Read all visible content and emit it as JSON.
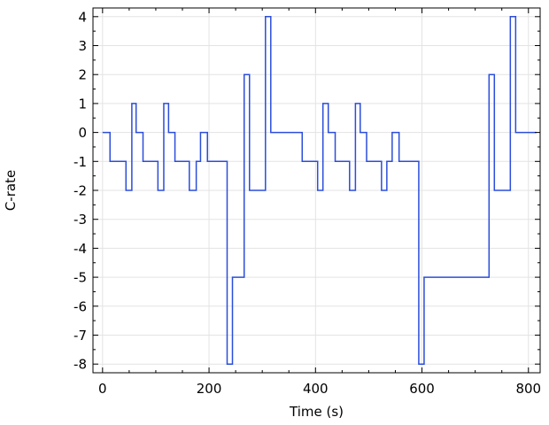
{
  "chart_data": {
    "type": "line",
    "title": "",
    "xlabel": "Time (s)",
    "ylabel": "C-rate",
    "xlim": [
      -18,
      822
    ],
    "ylim": [
      -8.3,
      4.3
    ],
    "x_ticks": [
      0,
      200,
      400,
      600,
      800
    ],
    "x_tick_labels": [
      "0",
      "200",
      "400",
      "600",
      "800"
    ],
    "y_ticks": [
      4,
      3,
      2,
      1,
      0,
      -1,
      -2,
      -3,
      -4,
      -5,
      -6,
      -7,
      -8
    ],
    "y_tick_labels": [
      "4",
      "3",
      "2",
      "1",
      "0",
      "-1",
      "-2",
      "-3",
      "-4",
      "-5",
      "-6",
      "-7",
      "-8"
    ],
    "grid": true,
    "colors": {
      "series": "#2b4ddb",
      "grid": "#e3e3e3",
      "axis": "#000000"
    },
    "series": [
      {
        "name": "",
        "x": [
          0,
          14,
          14,
          44,
          44,
          55,
          55,
          63,
          63,
          76,
          76,
          104,
          104,
          115,
          115,
          124,
          124,
          136,
          136,
          163,
          163,
          176,
          176,
          184,
          184,
          197,
          197,
          234,
          234,
          244,
          244,
          266,
          266,
          276,
          276,
          306,
          306,
          316,
          316,
          375,
          375,
          404,
          404,
          414,
          414,
          424,
          424,
          437,
          437,
          464,
          464,
          475,
          475,
          484,
          484,
          496,
          496,
          524,
          524,
          534,
          534,
          544,
          544,
          557,
          557,
          594,
          594,
          604,
          604,
          726,
          726,
          736,
          736,
          766,
          766,
          776,
          776,
          815
        ],
        "y": [
          0,
          0,
          -1,
          -1,
          -2,
          -2,
          1,
          1,
          0,
          0,
          -1,
          -1,
          -2,
          -2,
          1,
          1,
          0,
          0,
          -1,
          -1,
          -2,
          -2,
          -1,
          -1,
          0,
          0,
          -1,
          -1,
          -8,
          -8,
          -5,
          -5,
          2,
          2,
          -2,
          -2,
          4,
          4,
          0,
          0,
          -1,
          -1,
          -2,
          -2,
          1,
          1,
          0,
          0,
          -1,
          -1,
          -2,
          -2,
          1,
          1,
          0,
          0,
          -1,
          -1,
          -2,
          -2,
          -1,
          -1,
          0,
          0,
          -1,
          -1,
          -8,
          -8,
          -5,
          -5,
          2,
          2,
          -2,
          -2,
          4,
          4,
          0,
          0
        ]
      }
    ]
  }
}
